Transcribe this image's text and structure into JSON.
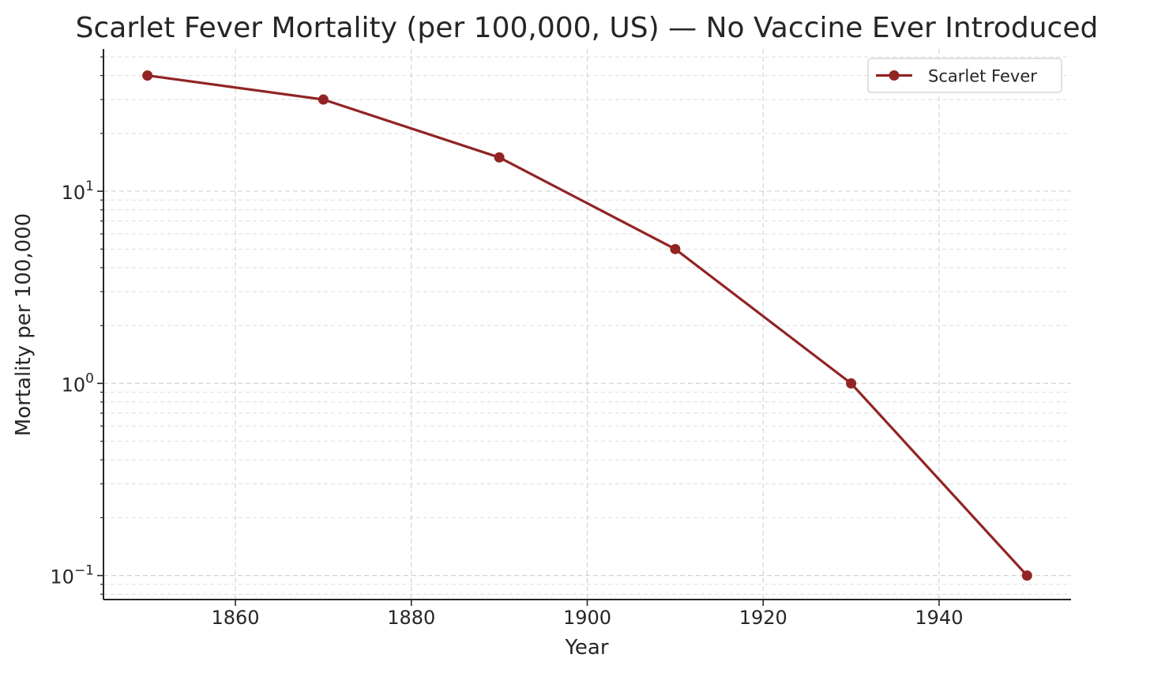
{
  "chart_data": {
    "type": "line",
    "title": "Scarlet Fever Mortality (per 100,000, US) — No Vaccine Ever Introduced",
    "xlabel": "Year",
    "ylabel": "Mortality per 100,000",
    "yscale": "log",
    "xlim": [
      1845,
      1955
    ],
    "ylim": [
      0.075,
      55
    ],
    "xticks": [
      1860,
      1880,
      1900,
      1920,
      1940
    ],
    "yticks": [
      {
        "value": 0.1,
        "base": "10",
        "exp": "−1"
      },
      {
        "value": 1,
        "base": "10",
        "exp": "0"
      },
      {
        "value": 10,
        "base": "10",
        "exp": "1"
      }
    ],
    "grid": true,
    "legend": "top-right",
    "series": [
      {
        "name": "Scarlet Fever",
        "color": "#922424",
        "marker": "circle",
        "x": [
          1850,
          1870,
          1890,
          1910,
          1930,
          1950
        ],
        "y": [
          40,
          30,
          15,
          5,
          1,
          0.1
        ]
      }
    ]
  }
}
